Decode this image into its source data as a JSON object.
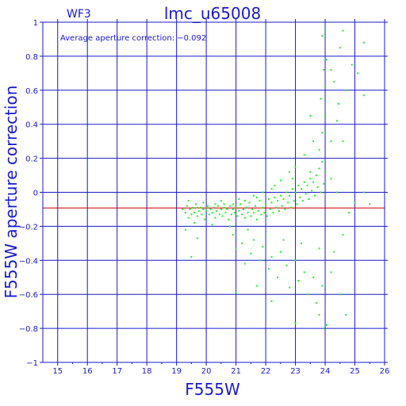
{
  "chart_data": {
    "type": "scatter",
    "chip_label": "WF3",
    "title": "lmc_u65008",
    "xlabel": "F555W",
    "ylabel": "F555W aperture correction",
    "annotation": "Average aperture correction: −0.092",
    "xlim": [
      14.5,
      26
    ],
    "ylim": [
      -1,
      1
    ],
    "xticks": [
      15,
      16,
      17,
      18,
      19,
      20,
      21,
      22,
      23,
      24,
      25,
      26
    ],
    "xtick_labels": [
      "15",
      "16",
      "17",
      "18",
      "19",
      "20",
      "21",
      "22",
      "23",
      "24",
      "25",
      "26"
    ],
    "yticks": [
      -1,
      -0.8,
      -0.6,
      -0.4,
      -0.2,
      0,
      0.2,
      0.4,
      0.6,
      0.8,
      1
    ],
    "ytick_labels": [
      "−1",
      "−0.8",
      "−0.6",
      "−0.4",
      "−0.2",
      "0",
      "0.2",
      "0.4",
      "0.6",
      "0.8",
      "1"
    ],
    "grid": true,
    "reference_line": {
      "y": -0.092,
      "color": "#cc0000"
    },
    "colors": {
      "axes": "#1a1acc",
      "grid": "#1a1acc",
      "points": "#22ee22"
    },
    "points": [
      [
        19.2,
        -0.1
      ],
      [
        19.3,
        -0.12
      ],
      [
        19.35,
        -0.08
      ],
      [
        19.4,
        -0.15
      ],
      [
        19.45,
        -0.1
      ],
      [
        19.5,
        -0.13
      ],
      [
        19.55,
        -0.09
      ],
      [
        19.6,
        -0.12
      ],
      [
        19.65,
        -0.07
      ],
      [
        19.7,
        -0.14
      ],
      [
        19.75,
        -0.11
      ],
      [
        19.8,
        -0.09
      ],
      [
        19.85,
        -0.13
      ],
      [
        19.9,
        -0.1
      ],
      [
        19.95,
        -0.16
      ],
      [
        20.0,
        -0.11
      ],
      [
        20.05,
        -0.08
      ],
      [
        20.1,
        -0.13
      ],
      [
        20.15,
        -0.1
      ],
      [
        20.2,
        -0.12
      ],
      [
        20.25,
        -0.09
      ],
      [
        20.3,
        -0.15
      ],
      [
        20.35,
        -0.11
      ],
      [
        20.4,
        -0.08
      ],
      [
        20.45,
        -0.13
      ],
      [
        20.5,
        -0.1
      ],
      [
        20.55,
        -0.14
      ],
      [
        20.6,
        -0.09
      ],
      [
        20.65,
        -0.12
      ],
      [
        20.7,
        -0.1
      ],
      [
        20.75,
        -0.16
      ],
      [
        20.8,
        -0.08
      ],
      [
        20.85,
        -0.13
      ],
      [
        20.9,
        -0.1
      ],
      [
        20.95,
        -0.12
      ],
      [
        21.0,
        -0.09
      ],
      [
        21.05,
        -0.14
      ],
      [
        21.1,
        -0.11
      ],
      [
        21.15,
        -0.07
      ],
      [
        21.2,
        -0.13
      ],
      [
        21.25,
        -0.1
      ],
      [
        21.3,
        -0.15
      ],
      [
        21.35,
        -0.09
      ],
      [
        21.4,
        -0.12
      ],
      [
        21.45,
        -0.06
      ],
      [
        21.5,
        -0.14
      ],
      [
        21.55,
        -0.1
      ],
      [
        21.6,
        -0.12
      ],
      [
        21.65,
        -0.08
      ],
      [
        21.7,
        -0.16
      ],
      [
        21.75,
        -0.11
      ],
      [
        21.8,
        -0.05
      ],
      [
        21.85,
        -0.13
      ],
      [
        21.9,
        -0.09
      ],
      [
        21.95,
        -0.12
      ],
      [
        22.0,
        -0.07
      ],
      [
        22.05,
        -0.14
      ],
      [
        22.1,
        -0.04
      ],
      [
        22.15,
        -0.1
      ],
      [
        22.2,
        -0.06
      ],
      [
        22.25,
        -0.12
      ],
      [
        22.3,
        -0.03
      ],
      [
        22.35,
        -0.09
      ],
      [
        22.4,
        -0.05
      ],
      [
        22.45,
        -0.11
      ],
      [
        22.5,
        -0.02
      ],
      [
        22.55,
        -0.08
      ],
      [
        22.6,
        -0.04
      ],
      [
        22.65,
        -0.1
      ],
      [
        22.7,
        0.0
      ],
      [
        22.75,
        -0.06
      ],
      [
        22.8,
        -0.02
      ],
      [
        22.85,
        -0.09
      ],
      [
        22.9,
        0.02
      ],
      [
        22.95,
        -0.05
      ],
      [
        23.0,
        0.0
      ],
      [
        23.05,
        -0.07
      ],
      [
        23.1,
        0.04
      ],
      [
        23.15,
        -0.03
      ],
      [
        23.2,
        0.02
      ],
      [
        23.25,
        -0.05
      ],
      [
        23.3,
        0.06
      ],
      [
        23.35,
        -0.01
      ],
      [
        23.4,
        0.04
      ],
      [
        23.45,
        -0.04
      ],
      [
        23.5,
        0.08
      ],
      [
        23.55,
        0.01
      ],
      [
        23.6,
        0.06
      ],
      [
        23.65,
        -0.02
      ],
      [
        23.7,
        0.1
      ],
      [
        23.75,
        0.03
      ],
      [
        23.8,
        0.14
      ],
      [
        23.85,
        0.0
      ],
      [
        23.9,
        0.18
      ],
      [
        23.95,
        0.05
      ],
      [
        24.0,
        0.12
      ],
      [
        19.4,
        -0.05
      ],
      [
        19.6,
        -0.18
      ],
      [
        19.9,
        -0.06
      ],
      [
        20.2,
        -0.19
      ],
      [
        20.5,
        -0.05
      ],
      [
        20.8,
        -0.2
      ],
      [
        21.1,
        -0.04
      ],
      [
        21.4,
        -0.22
      ],
      [
        21.7,
        -0.03
      ],
      [
        22.0,
        -0.25
      ],
      [
        22.3,
        0.04
      ],
      [
        22.6,
        -0.28
      ],
      [
        22.9,
        0.08
      ],
      [
        23.2,
        -0.3
      ],
      [
        23.5,
        0.12
      ],
      [
        23.8,
        -0.33
      ],
      [
        19.3,
        -0.22
      ],
      [
        19.7,
        -0.27
      ],
      [
        19.5,
        -0.38
      ],
      [
        20.9,
        -0.25
      ],
      [
        21.0,
        -0.33
      ],
      [
        21.2,
        -0.3
      ],
      [
        21.3,
        -0.42
      ],
      [
        21.5,
        -0.36
      ],
      [
        21.6,
        -0.28
      ],
      [
        21.8,
        -0.4
      ],
      [
        21.9,
        -0.32
      ],
      [
        22.1,
        -0.45
      ],
      [
        22.2,
        -0.38
      ],
      [
        22.4,
        -0.5
      ],
      [
        22.5,
        -0.35
      ],
      [
        22.7,
        -0.43
      ],
      [
        22.8,
        -0.56
      ],
      [
        23.0,
        -0.4
      ],
      [
        23.1,
        -0.52
      ],
      [
        23.3,
        -0.47
      ],
      [
        23.4,
        -0.6
      ],
      [
        23.6,
        -0.5
      ],
      [
        23.7,
        -0.65
      ],
      [
        23.9,
        -0.55
      ],
      [
        21.0,
        -0.59
      ],
      [
        21.7,
        -0.55
      ],
      [
        22.2,
        -0.64
      ],
      [
        23.0,
        -0.77
      ],
      [
        23.8,
        -0.72
      ],
      [
        23.95,
        -0.8
      ],
      [
        24.05,
        -0.78
      ],
      [
        24.2,
        -0.47
      ],
      [
        24.5,
        -0.6
      ],
      [
        24.7,
        -0.72
      ],
      [
        24.3,
        -0.35
      ],
      [
        24.6,
        -0.25
      ],
      [
        24.8,
        -0.12
      ],
      [
        24.4,
        0.0
      ],
      [
        24.2,
        0.08
      ],
      [
        23.8,
        0.25
      ],
      [
        23.9,
        0.35
      ],
      [
        24.0,
        0.45
      ],
      [
        23.85,
        0.55
      ],
      [
        24.0,
        0.62
      ],
      [
        23.95,
        0.72
      ],
      [
        24.05,
        0.78
      ],
      [
        24.2,
        0.72
      ],
      [
        23.9,
        0.92
      ],
      [
        24.0,
        0.95
      ],
      [
        24.3,
        0.65
      ],
      [
        24.45,
        0.52
      ],
      [
        24.5,
        0.85
      ],
      [
        24.6,
        0.95
      ],
      [
        24.4,
        0.42
      ],
      [
        24.7,
        0.6
      ],
      [
        24.9,
        0.75
      ],
      [
        25.1,
        0.7
      ],
      [
        25.3,
        0.57
      ],
      [
        25.3,
        0.88
      ],
      [
        24.6,
        0.3
      ],
      [
        24.2,
        0.3
      ],
      [
        25.0,
        -0.06
      ],
      [
        25.5,
        -0.07
      ],
      [
        25.3,
        0.0
      ],
      [
        23.5,
        0.45
      ],
      [
        23.6,
        0.3
      ],
      [
        23.3,
        0.22
      ],
      [
        23.0,
        0.15
      ],
      [
        22.8,
        0.12
      ],
      [
        22.5,
        0.07
      ],
      [
        22.2,
        0.02
      ],
      [
        21.9,
        0.0
      ],
      [
        21.6,
        -0.02
      ],
      [
        21.3,
        -0.05
      ],
      [
        20.9,
        -0.07
      ],
      [
        20.6,
        -0.07
      ],
      [
        20.3,
        -0.07
      ],
      [
        20.0,
        -0.09
      ],
      [
        19.7,
        -0.09
      ]
    ]
  }
}
